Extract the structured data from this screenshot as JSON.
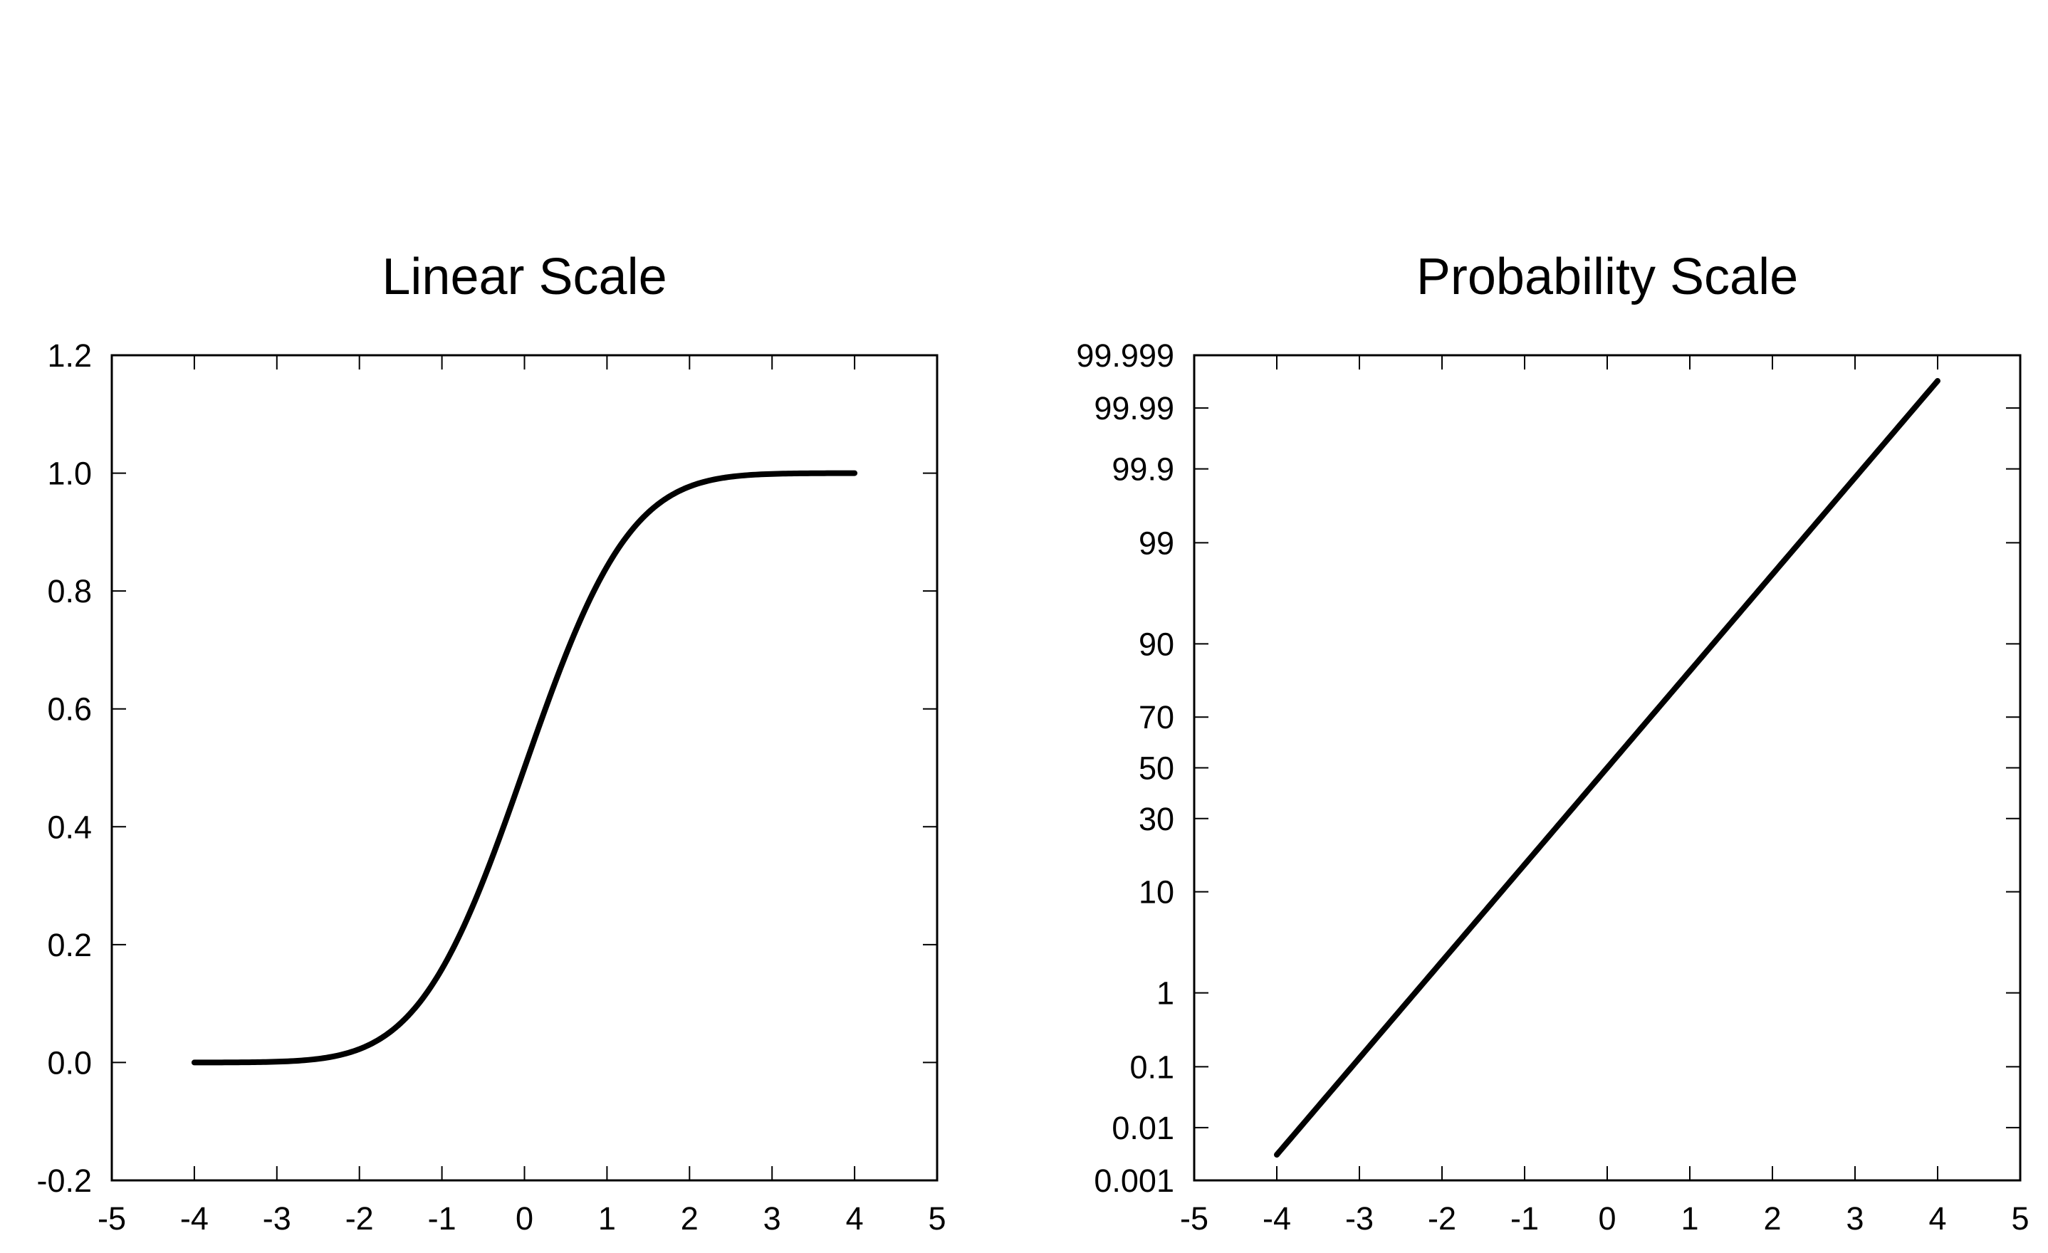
{
  "chart_data": [
    {
      "type": "line",
      "title": "Linear Scale",
      "xlabel": "",
      "ylabel": "",
      "xlim": [
        -5,
        5
      ],
      "ylim": [
        -0.2,
        1.2
      ],
      "x_ticks": [
        "-5",
        "-4",
        "-3",
        "-2",
        "-1",
        "0",
        "1",
        "2",
        "3",
        "4",
        "5"
      ],
      "y_ticks": [
        "-0.2",
        "0.0",
        "0.2",
        "0.4",
        "0.6",
        "0.8",
        "1.0",
        "1.2"
      ],
      "grid": false,
      "series": [
        {
          "function": "standard normal CDF",
          "color": "#000000",
          "x": [
            -4,
            -3.5,
            -3,
            -2.5,
            -2,
            -1.5,
            -1,
            -0.5,
            0,
            0.5,
            1,
            1.5,
            2,
            2.5,
            3,
            3.5,
            4
          ],
          "y": [
            3e-05,
            0.0002,
            0.0013,
            0.0062,
            0.0228,
            0.0668,
            0.1587,
            0.3085,
            0.5,
            0.6915,
            0.8413,
            0.9332,
            0.9772,
            0.9938,
            0.9987,
            0.9998,
            0.99997
          ]
        }
      ]
    },
    {
      "type": "line",
      "title": "Probability Scale",
      "xlabel": "",
      "ylabel": "",
      "xlim": [
        -5,
        5
      ],
      "ylim": [
        0.001,
        99.999
      ],
      "yscale": "probability",
      "x_ticks": [
        "-5",
        "-4",
        "-3",
        "-2",
        "-1",
        "0",
        "1",
        "2",
        "3",
        "4",
        "5"
      ],
      "y_ticks": [
        "0.001",
        "0.01",
        "0.1",
        "1",
        "10",
        "30",
        "50",
        "70",
        "90",
        "99",
        "99.9",
        "99.99",
        "99.999"
      ],
      "grid": false,
      "series": [
        {
          "function": "standard normal CDF (percent)",
          "color": "#000000",
          "x": [
            -4,
            -3,
            -2,
            -1,
            0,
            1,
            2,
            3,
            4
          ],
          "y": [
            0.003,
            0.135,
            2.275,
            15.87,
            50,
            84.13,
            97.725,
            99.865,
            99.997
          ]
        }
      ]
    }
  ]
}
